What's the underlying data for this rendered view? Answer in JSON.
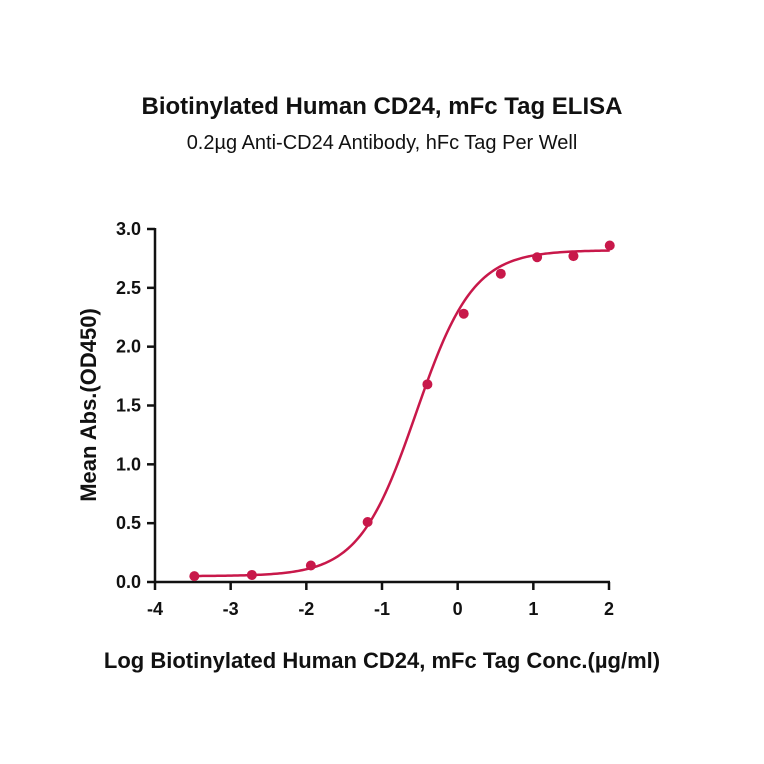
{
  "chart_data": {
    "type": "scatter",
    "title": "Biotinylated Human CD24, mFc Tag ELISA",
    "subtitle": "0.2µg Anti-CD24 Antibody, hFc Tag Per Well",
    "xlabel": "Log Biotinylated Human CD24, mFc Tag Conc.(µg/ml)",
    "ylabel": "Mean Abs.(OD450)",
    "xlim": [
      -4,
      2
    ],
    "ylim": [
      0,
      3
    ],
    "xticks": [
      "-4",
      "-3",
      "-2",
      "-1",
      "0",
      "1",
      "2"
    ],
    "yticks": [
      "0.0",
      "0.5",
      "1.0",
      "1.5",
      "2.0",
      "2.5",
      "3.0"
    ],
    "grid": false,
    "color": "#c8184a",
    "series": [
      {
        "x": [
          -3.48,
          -2.72,
          -1.94,
          -1.19,
          -0.4,
          0.08,
          0.57,
          1.05,
          1.53,
          2.01
        ],
        "y": [
          0.05,
          0.06,
          0.14,
          0.51,
          1.68,
          2.28,
          2.62,
          2.76,
          2.77,
          2.86
        ]
      }
    ],
    "fit": {
      "bottom": 0.05,
      "top": 2.82,
      "logEC50": -0.55,
      "hill": 1.15
    }
  }
}
